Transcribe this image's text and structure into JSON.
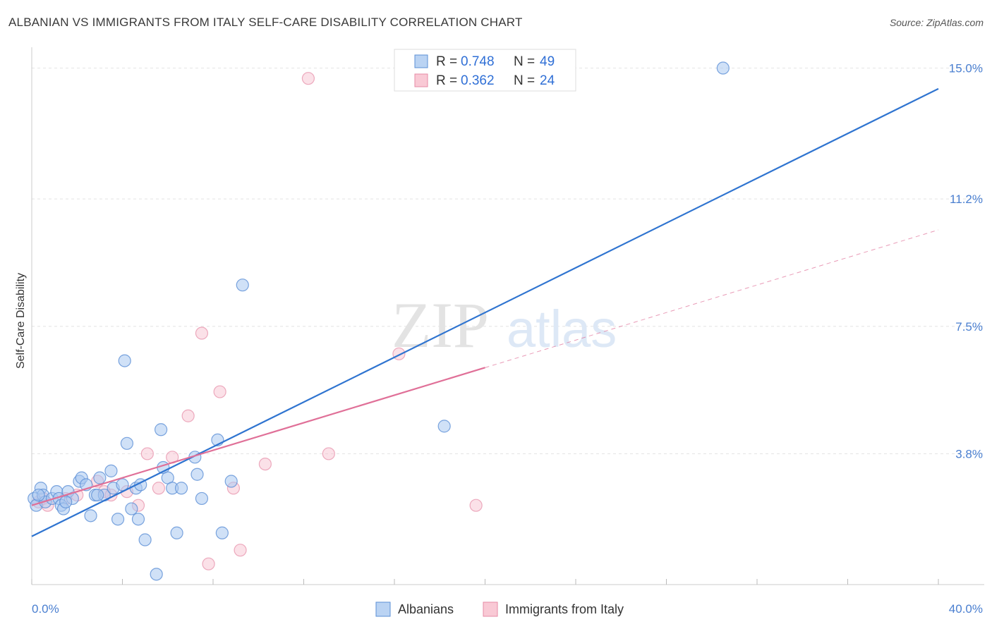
{
  "title": "ALBANIAN VS IMMIGRANTS FROM ITALY SELF-CARE DISABILITY CORRELATION CHART",
  "source": "Source: ZipAtlas.com",
  "watermark": {
    "zip": "ZIP",
    "atlas": "atlas"
  },
  "legend": {
    "r_label": "R = ",
    "n_label": "N = ",
    "rows": [
      {
        "r": "0.748",
        "n": "49"
      },
      {
        "r": "0.362",
        "n": "24"
      }
    ]
  },
  "bottom_legend": [
    "Albanians",
    "Immigrants from Italy"
  ],
  "colors": {
    "albanians_fill": "#a9c8f0",
    "albanians_stroke": "#5b8fd6",
    "albanians_line": "#2f74d0",
    "italy_fill": "#f7bccb",
    "italy_stroke": "#e68aa5",
    "italy_line": "#e07098",
    "tick_text": "#4a7fd0"
  },
  "chart_data": {
    "type": "scatter",
    "title": "ALBANIAN VS IMMIGRANTS FROM ITALY SELF-CARE DISABILITY CORRELATION CHART",
    "xlabel": "",
    "ylabel": "Self-Care Disability",
    "xlim": [
      0,
      40
    ],
    "ylim": [
      0,
      15.4
    ],
    "x_tick_labels": [
      "0.0%",
      "40.0%"
    ],
    "y_ticks": [
      3.8,
      7.5,
      11.2,
      15.0
    ],
    "y_tick_labels": [
      "3.8%",
      "7.5%",
      "11.2%",
      "15.0%"
    ],
    "grid": true,
    "legend_position": "top-center",
    "series": [
      {
        "name": "Albanians",
        "R": 0.748,
        "N": 49,
        "points": [
          [
            0.1,
            2.5
          ],
          [
            0.2,
            2.3
          ],
          [
            0.4,
            2.8
          ],
          [
            0.5,
            2.6
          ],
          [
            0.6,
            2.4
          ],
          [
            0.9,
            2.5
          ],
          [
            1.1,
            2.7
          ],
          [
            1.2,
            2.5
          ],
          [
            1.3,
            2.3
          ],
          [
            1.4,
            2.2
          ],
          [
            1.6,
            2.7
          ],
          [
            1.8,
            2.5
          ],
          [
            2.1,
            3.0
          ],
          [
            2.2,
            3.1
          ],
          [
            2.4,
            2.9
          ],
          [
            2.6,
            2.0
          ],
          [
            2.8,
            2.6
          ],
          [
            3.0,
            3.1
          ],
          [
            3.2,
            2.6
          ],
          [
            3.5,
            3.3
          ],
          [
            3.6,
            2.8
          ],
          [
            3.8,
            1.9
          ],
          [
            4.0,
            2.9
          ],
          [
            4.1,
            6.5
          ],
          [
            4.2,
            4.1
          ],
          [
            4.4,
            2.2
          ],
          [
            4.6,
            2.8
          ],
          [
            4.7,
            1.9
          ],
          [
            4.8,
            2.9
          ],
          [
            5.0,
            1.3
          ],
          [
            5.5,
            0.3
          ],
          [
            5.7,
            4.5
          ],
          [
            5.8,
            3.4
          ],
          [
            6.0,
            3.1
          ],
          [
            6.2,
            2.8
          ],
          [
            6.4,
            1.5
          ],
          [
            6.6,
            2.8
          ],
          [
            7.2,
            3.7
          ],
          [
            7.3,
            3.2
          ],
          [
            7.5,
            2.5
          ],
          [
            8.2,
            4.2
          ],
          [
            8.4,
            1.5
          ],
          [
            8.8,
            3.0
          ],
          [
            9.3,
            8.7
          ],
          [
            18.2,
            4.6
          ],
          [
            30.5,
            15.0
          ],
          [
            2.9,
            2.6
          ],
          [
            0.3,
            2.6
          ],
          [
            1.5,
            2.4
          ]
        ],
        "trend": {
          "x": [
            0,
            40
          ],
          "y": [
            1.4,
            14.4
          ]
        }
      },
      {
        "name": "Immigrants from Italy",
        "R": 0.362,
        "N": 24,
        "points": [
          [
            0.3,
            2.4
          ],
          [
            0.5,
            2.5
          ],
          [
            0.7,
            2.3
          ],
          [
            1.5,
            2.5
          ],
          [
            2.0,
            2.6
          ],
          [
            2.9,
            3.0
          ],
          [
            3.2,
            2.7
          ],
          [
            3.5,
            2.6
          ],
          [
            4.2,
            2.7
          ],
          [
            4.7,
            2.3
          ],
          [
            5.1,
            3.8
          ],
          [
            5.6,
            2.8
          ],
          [
            6.2,
            3.7
          ],
          [
            6.9,
            4.9
          ],
          [
            7.5,
            7.3
          ],
          [
            7.8,
            0.6
          ],
          [
            8.3,
            5.6
          ],
          [
            8.9,
            2.8
          ],
          [
            9.2,
            1.0
          ],
          [
            10.3,
            3.5
          ],
          [
            12.2,
            14.7
          ],
          [
            13.1,
            3.8
          ],
          [
            16.2,
            6.7
          ],
          [
            19.6,
            2.3
          ]
        ],
        "trend": {
          "x": [
            0,
            20
          ],
          "y": [
            2.3,
            6.3
          ]
        },
        "trend_extension": {
          "x": [
            20,
            40
          ],
          "y": [
            6.3,
            10.3
          ]
        }
      }
    ]
  }
}
